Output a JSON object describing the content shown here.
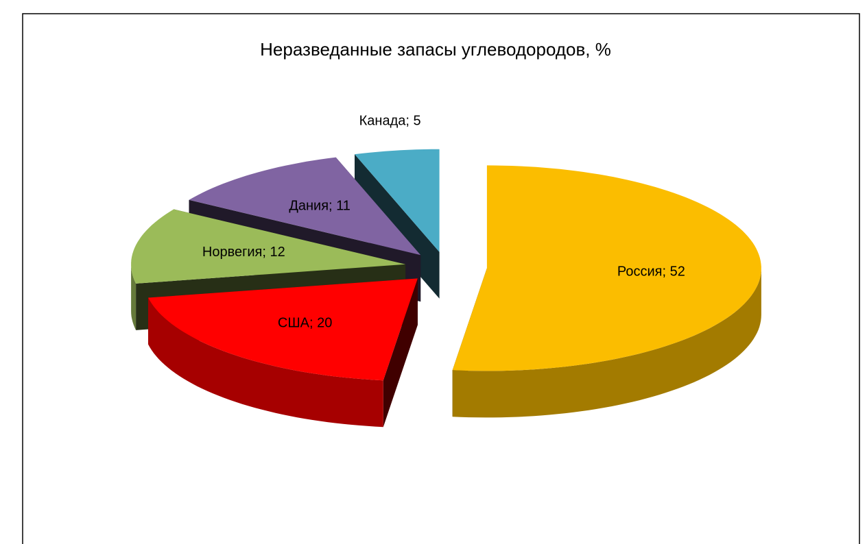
{
  "chart_data": {
    "type": "pie",
    "title": "Неразведанные запасы углеводородов, %",
    "values": [
      52,
      20,
      12,
      11,
      5
    ],
    "value_labels": [
      "Россия; 52",
      "США; 20",
      "Норвегия; 12",
      "Дания; 11",
      "Канада; 5"
    ],
    "colors": [
      "#fbbd00",
      "#ff0000",
      "#9bbb59",
      "#8064a2",
      "#4bacc6"
    ]
  }
}
